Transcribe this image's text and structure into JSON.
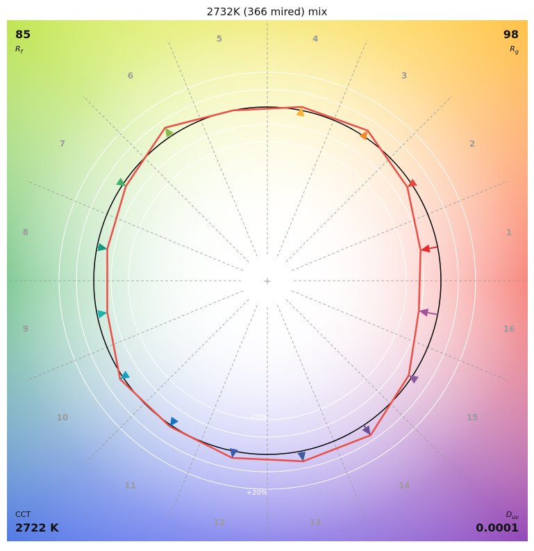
{
  "title": "2732K (366 mired) mix",
  "metrics": {
    "rf_value": "85",
    "rf_label": "R",
    "rf_sub": "f",
    "rg_value": "98",
    "rg_label": "R",
    "rg_sub": "g",
    "cct_label": "CCT",
    "cct_value": "2722 K",
    "duv_label": "D",
    "duv_sub": "uv",
    "duv_value": "0.0001"
  },
  "ring_labels": {
    "minus": "-20%",
    "plus": "+20%"
  },
  "colors": {
    "test_polygon": "#e8524a",
    "reference_circle": "#000000",
    "hue_label": "#9a9a9a",
    "bins": [
      "#e8292c",
      "#e6493f",
      "#f08a2a",
      "#f6b53a",
      "#c9c53a",
      "#8ab84d",
      "#46b06a",
      "#15987f",
      "#1ab2aa",
      "#16a0bd",
      "#1675c0",
      "#3c5ca7",
      "#3d5a9a",
      "#6a4f93",
      "#8b5b9c",
      "#a4529a"
    ]
  },
  "chart_data": {
    "type": "color-vector-graphic",
    "title": "2732K (366 mired) mix",
    "hue_bins": [
      "1",
      "2",
      "3",
      "4",
      "5",
      "6",
      "7",
      "8",
      "9",
      "10",
      "11",
      "12",
      "13",
      "14",
      "15",
      "16"
    ],
    "reference_radius_relative": 1.0,
    "test_radius_relative": [
      0.9,
      0.97,
      1.04,
      1.02,
      1.0,
      1.06,
      0.98,
      0.94,
      0.94,
      1.02,
      1.01,
      1.04,
      1.06,
      1.07,
      0.98,
      0.89
    ],
    "ring_values_percent": [
      -20,
      -10,
      0,
      10,
      20
    ],
    "Rf": 85,
    "Rg": 98,
    "CCT_K": 2722,
    "Duv": 0.0001
  }
}
